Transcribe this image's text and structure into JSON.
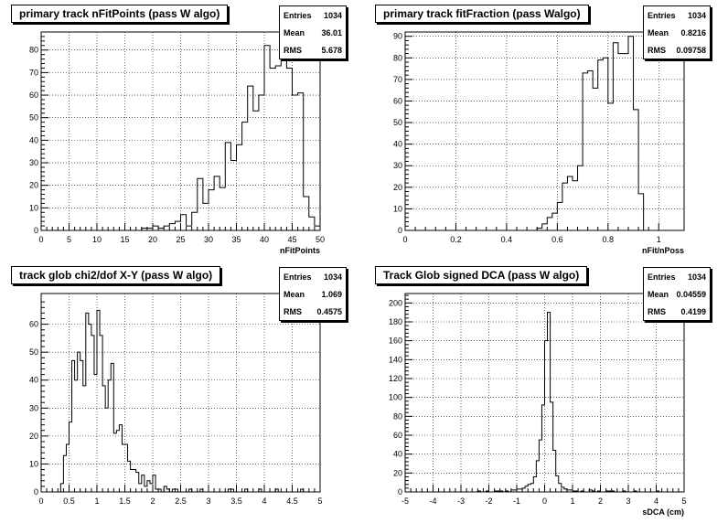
{
  "panels": [
    {
      "title": "primary track nFitPoints (pass W algo)",
      "stats": {
        "entries_label": "Entries",
        "entries": "1034",
        "mean_label": "Mean",
        "mean": "36.01",
        "rms_label": "RMS",
        "rms": "5.678"
      },
      "xlabel": "nFitPoints"
    },
    {
      "title": "primary track fitFraction (pass Walgo)",
      "stats": {
        "entries_label": "Entries",
        "entries": "1034",
        "mean_label": "Mean",
        "mean": "0.8216",
        "rms_label": "RMS",
        "rms": "0.09758"
      },
      "xlabel": "nFit/nPoss"
    },
    {
      "title": "track glob chi2/dof X-Y (pass W algo)",
      "stats": {
        "entries_label": "Entries",
        "entries": "1034",
        "mean_label": "Mean",
        "mean": "1.069",
        "rms_label": "RMS",
        "rms": "0.4575"
      },
      "xlabel": ""
    },
    {
      "title": "Track Glob signed DCA (pass W algo)",
      "stats": {
        "entries_label": "Entries",
        "entries": "1034",
        "mean_label": "Mean",
        "mean": "0.04559",
        "rms_label": "RMS",
        "rms": "0.4199"
      },
      "xlabel": "sDCA (cm)"
    }
  ],
  "chart_data": [
    {
      "type": "histogram",
      "title": "primary track nFitPoints (pass W algo)",
      "xlabel": "nFitPoints",
      "xlim": [
        0,
        50
      ],
      "ylim": [
        0,
        88
      ],
      "xticks": [
        0,
        5,
        10,
        15,
        20,
        25,
        30,
        35,
        40,
        45,
        50
      ],
      "yticks": [
        0,
        10,
        20,
        30,
        40,
        50,
        60,
        70,
        80
      ],
      "bin_width": 1,
      "bin_start": 15,
      "values": [
        0,
        0,
        0,
        1,
        1,
        2,
        1,
        2,
        3,
        4,
        7,
        2,
        8,
        23,
        12,
        18,
        24,
        19,
        39,
        31,
        38,
        48,
        64,
        53,
        60,
        82,
        72,
        73,
        77,
        72,
        60,
        61,
        15,
        6,
        2
      ],
      "grid": true,
      "stats": {
        "entries": 1034,
        "mean": 36.01,
        "rms": 5.678
      }
    },
    {
      "type": "histogram",
      "title": "primary track fitFraction (pass Walgo)",
      "xlabel": "nFit/nPoss",
      "xlim": [
        0,
        1.1
      ],
      "ylim": [
        0,
        92
      ],
      "xticks": [
        0,
        0.2,
        0.4,
        0.6,
        0.8,
        1
      ],
      "yticks": [
        0,
        10,
        20,
        30,
        40,
        50,
        60,
        70,
        80,
        90
      ],
      "bin_width": 0.02,
      "bin_start": 0.5,
      "values": [
        0,
        1,
        3,
        6,
        8,
        13,
        22,
        25,
        23,
        30,
        73,
        74,
        66,
        79,
        80,
        59,
        87,
        82,
        82,
        90,
        56,
        17
      ],
      "grid": true,
      "stats": {
        "entries": 1034,
        "mean": 0.8216,
        "rms": 0.09758
      }
    },
    {
      "type": "histogram",
      "title": "track glob chi2/dof X-Y (pass W algo)",
      "xlabel": "",
      "xlim": [
        0,
        5
      ],
      "ylim": [
        0,
        71
      ],
      "xticks": [
        0,
        0.5,
        1,
        1.5,
        2,
        2.5,
        3,
        3.5,
        4,
        4.5,
        5
      ],
      "yticks": [
        0,
        10,
        20,
        30,
        40,
        50,
        60
      ],
      "bin_width": 0.05,
      "bin_start": 0.35,
      "values": [
        3,
        13,
        17,
        25,
        47,
        40,
        50,
        47,
        38,
        64,
        60,
        56,
        42,
        65,
        56,
        38,
        30,
        40,
        46,
        21,
        22,
        24,
        17,
        17,
        11,
        8,
        8,
        7,
        3,
        6,
        2,
        4,
        3,
        6,
        1,
        1,
        0,
        2,
        1,
        0,
        1,
        1,
        0,
        0,
        0,
        0,
        1,
        0,
        0,
        0,
        1,
        0,
        0,
        0,
        0,
        0,
        0,
        0,
        0,
        0,
        1,
        1,
        0,
        0,
        0,
        0,
        1,
        0,
        0,
        0,
        0,
        1,
        0,
        0,
        0,
        0,
        0,
        1,
        0,
        0,
        0,
        0,
        0,
        0,
        0,
        0,
        1,
        0,
        0,
        0,
        0,
        0
      ],
      "grid": true,
      "stats": {
        "entries": 1034,
        "mean": 1.069,
        "rms": 0.4575
      }
    },
    {
      "type": "histogram",
      "title": "Track Glob signed DCA (pass W algo)",
      "xlabel": "sDCA (cm)",
      "xlim": [
        -5,
        5
      ],
      "ylim": [
        0,
        210
      ],
      "xticks": [
        -5,
        -4,
        -3,
        -2,
        -1,
        0,
        1,
        2,
        3,
        4,
        5
      ],
      "yticks": [
        0,
        20,
        40,
        60,
        80,
        100,
        120,
        140,
        160,
        180,
        200
      ],
      "bin_width": 0.1,
      "bin_start": -2.4,
      "values": [
        1,
        0,
        0,
        1,
        0,
        0,
        1,
        1,
        1,
        0,
        1,
        0,
        2,
        2,
        3,
        3,
        4,
        6,
        8,
        9,
        16,
        33,
        55,
        92,
        160,
        190,
        95,
        44,
        17,
        9,
        5,
        3,
        2,
        2,
        1,
        1,
        0,
        1,
        0,
        0,
        2,
        1,
        0,
        1,
        0,
        0,
        1,
        1,
        1,
        0,
        0,
        0,
        1,
        0,
        0,
        0,
        1,
        0,
        0,
        0,
        0,
        0,
        0,
        0,
        1
      ],
      "grid": true,
      "stats": {
        "entries": 1034,
        "mean": 0.04559,
        "rms": 0.4199
      }
    }
  ]
}
